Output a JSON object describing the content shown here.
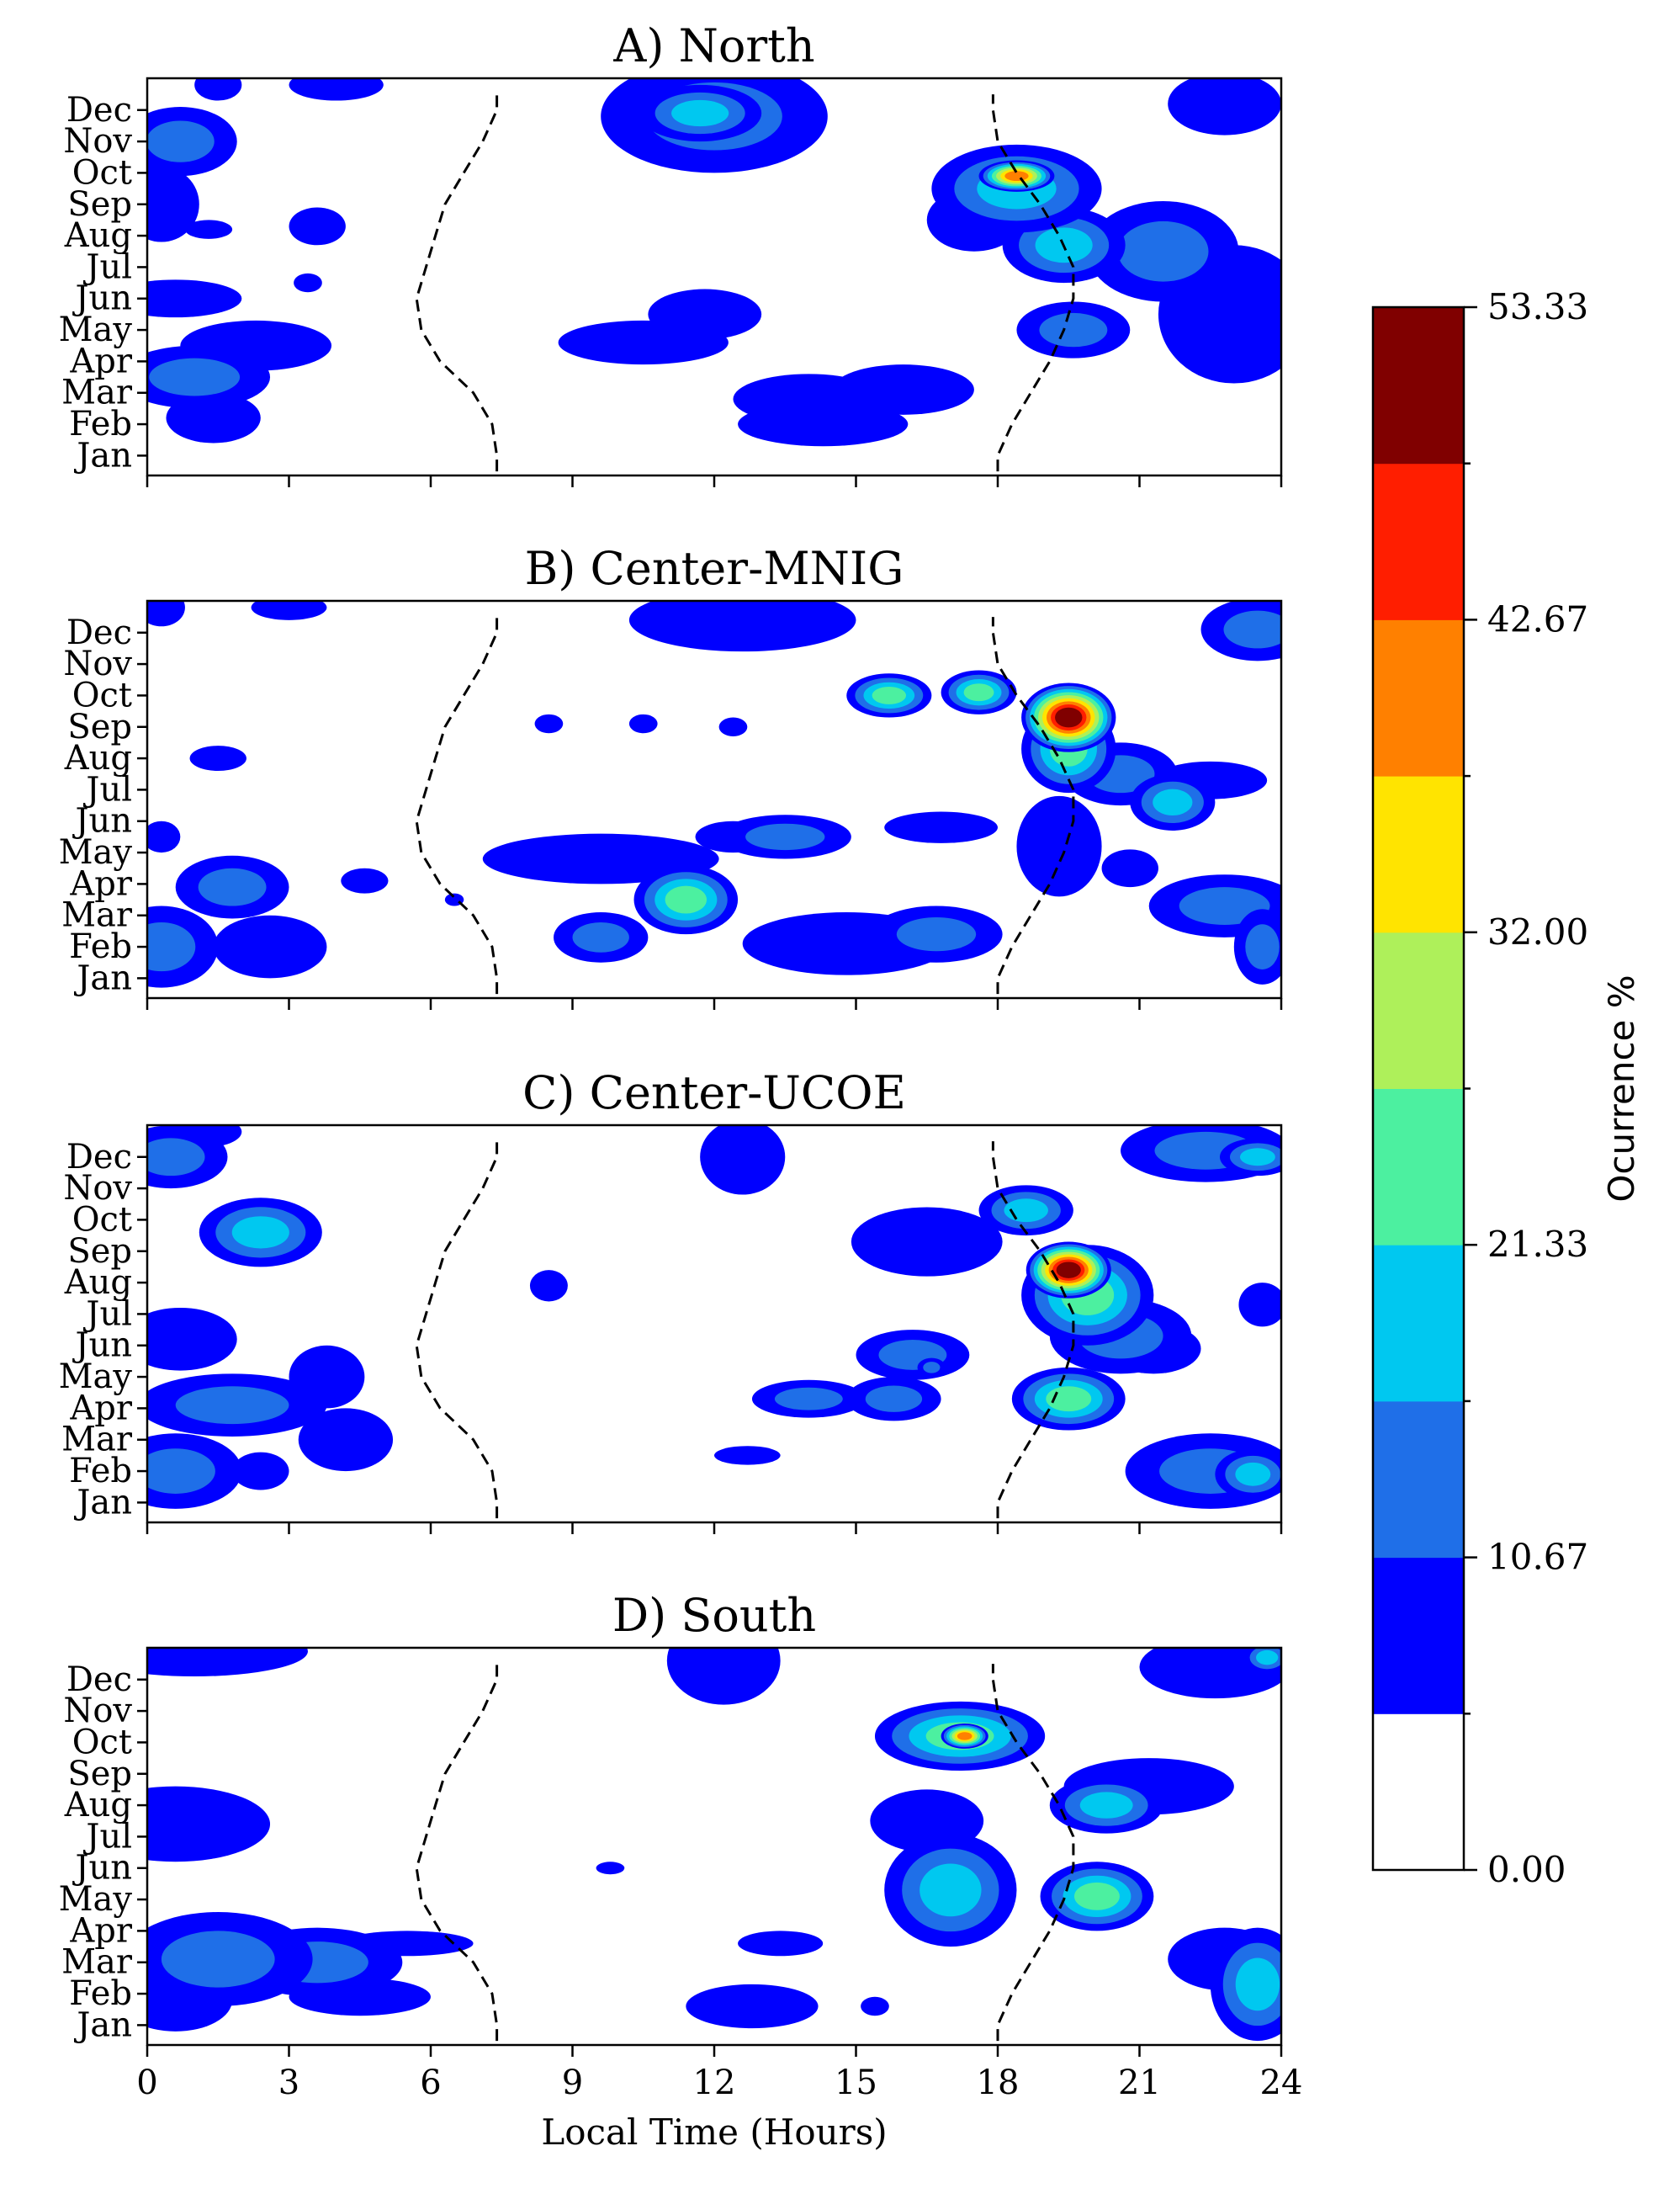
{
  "chart_data": {
    "type": "heatmap",
    "xlabel": "Local Time (Hours)",
    "x_ticks": [
      0,
      3,
      6,
      9,
      12,
      15,
      18,
      21,
      24
    ],
    "xlim": [
      0,
      24
    ],
    "y_months": [
      "Jan",
      "Feb",
      "Mar",
      "Apr",
      "May",
      "Jun",
      "Jul",
      "Aug",
      "Sep",
      "Oct",
      "Nov",
      "Dec"
    ],
    "colorbar": {
      "label": "Ocurrence %",
      "ticks": [
        "53.33",
        "42.67",
        "32.00",
        "21.33",
        "10.67",
        "0.00"
      ],
      "range": [
        0,
        53.33
      ],
      "levels": 10,
      "colors": [
        "#ffffff",
        "#0000ff",
        "#1f6fe8",
        "#00c8f0",
        "#4cf0a0",
        "#aef05a",
        "#ffe400",
        "#ff8000",
        "#ff1e00",
        "#800000"
      ]
    },
    "terminator": {
      "sunrise_hours": [
        7.4,
        7.3,
        6.9,
        6.2,
        5.8,
        5.7,
        5.9,
        6.1,
        6.3,
        6.7,
        7.1,
        7.4
      ],
      "sunset_hours": [
        18.0,
        18.3,
        18.7,
        19.1,
        19.4,
        19.6,
        19.6,
        19.3,
        18.9,
        18.4,
        18.0,
        17.9
      ]
    },
    "panels": [
      {
        "title": "A) North",
        "blobs": [
          {
            "x": 0.7,
            "y": 10.0,
            "rx": 1.2,
            "ry": 1.1,
            "v": 13
          },
          {
            "x": 0.3,
            "y": 8.0,
            "rx": 0.8,
            "ry": 1.2,
            "v": 9
          },
          {
            "x": 1.0,
            "y": 2.5,
            "rx": 1.6,
            "ry": 1.0,
            "v": 11
          },
          {
            "x": 1.4,
            "y": 1.2,
            "rx": 1.0,
            "ry": 0.8,
            "v": 10
          },
          {
            "x": 2.3,
            "y": 3.5,
            "rx": 1.6,
            "ry": 0.8,
            "v": 8
          },
          {
            "x": 0.6,
            "y": 5.0,
            "rx": 1.4,
            "ry": 0.6,
            "v": 8
          },
          {
            "x": 1.3,
            "y": 7.2,
            "rx": 0.5,
            "ry": 0.3,
            "v": 7
          },
          {
            "x": 3.6,
            "y": 7.3,
            "rx": 0.6,
            "ry": 0.6,
            "v": 8
          },
          {
            "x": 3.4,
            "y": 5.5,
            "rx": 0.3,
            "ry": 0.3,
            "v": 7
          },
          {
            "x": 1.5,
            "y": 11.8,
            "rx": 0.5,
            "ry": 0.5,
            "v": 7
          },
          {
            "x": 4.0,
            "y": 11.8,
            "rx": 1.0,
            "ry": 0.5,
            "v": 8
          },
          {
            "x": 12.0,
            "y": 10.8,
            "rx": 2.4,
            "ry": 1.8,
            "v": 13
          },
          {
            "x": 11.7,
            "y": 10.9,
            "rx": 1.3,
            "ry": 0.9,
            "v": 18
          },
          {
            "x": 11.8,
            "y": 4.5,
            "rx": 1.2,
            "ry": 0.8,
            "v": 8
          },
          {
            "x": 10.5,
            "y": 3.6,
            "rx": 1.8,
            "ry": 0.7,
            "v": 8
          },
          {
            "x": 14.0,
            "y": 1.8,
            "rx": 1.6,
            "ry": 0.8,
            "v": 9
          },
          {
            "x": 16.0,
            "y": 2.1,
            "rx": 1.5,
            "ry": 0.8,
            "v": 10
          },
          {
            "x": 14.3,
            "y": 1.0,
            "rx": 1.8,
            "ry": 0.7,
            "v": 8
          },
          {
            "x": 18.4,
            "y": 8.5,
            "rx": 1.8,
            "ry": 1.4,
            "v": 20
          },
          {
            "x": 18.4,
            "y": 8.9,
            "rx": 0.8,
            "ry": 0.5,
            "v": 42
          },
          {
            "x": 19.4,
            "y": 6.7,
            "rx": 1.3,
            "ry": 1.2,
            "v": 16
          },
          {
            "x": 19.6,
            "y": 4.0,
            "rx": 1.2,
            "ry": 0.9,
            "v": 14
          },
          {
            "x": 21.5,
            "y": 6.5,
            "rx": 1.6,
            "ry": 1.6,
            "v": 11
          },
          {
            "x": 23.0,
            "y": 4.5,
            "rx": 1.6,
            "ry": 2.2,
            "v": 9
          },
          {
            "x": 22.8,
            "y": 11.2,
            "rx": 1.2,
            "ry": 1.0,
            "v": 8
          },
          {
            "x": 17.5,
            "y": 7.5,
            "rx": 1.0,
            "ry": 1.0,
            "v": 10
          }
        ]
      },
      {
        "title": "B) Center-MNIG",
        "blobs": [
          {
            "x": 0.3,
            "y": 1.0,
            "rx": 1.2,
            "ry": 1.3,
            "v": 12
          },
          {
            "x": 1.8,
            "y": 2.9,
            "rx": 1.2,
            "ry": 1.0,
            "v": 14
          },
          {
            "x": 2.6,
            "y": 1.0,
            "rx": 1.2,
            "ry": 1.0,
            "v": 10
          },
          {
            "x": 0.3,
            "y": 4.5,
            "rx": 0.4,
            "ry": 0.5,
            "v": 7
          },
          {
            "x": 1.5,
            "y": 7.0,
            "rx": 0.6,
            "ry": 0.4,
            "v": 7
          },
          {
            "x": 0.3,
            "y": 11.8,
            "rx": 0.5,
            "ry": 0.6,
            "v": 7
          },
          {
            "x": 3.0,
            "y": 11.8,
            "rx": 0.8,
            "ry": 0.4,
            "v": 7
          },
          {
            "x": 4.6,
            "y": 3.1,
            "rx": 0.5,
            "ry": 0.4,
            "v": 7
          },
          {
            "x": 6.5,
            "y": 2.5,
            "rx": 0.2,
            "ry": 0.2,
            "v": 6
          },
          {
            "x": 8.5,
            "y": 8.1,
            "rx": 0.3,
            "ry": 0.3,
            "v": 7
          },
          {
            "x": 10.5,
            "y": 8.1,
            "rx": 0.3,
            "ry": 0.3,
            "v": 7
          },
          {
            "x": 12.4,
            "y": 8.0,
            "rx": 0.3,
            "ry": 0.3,
            "v": 7
          },
          {
            "x": 9.6,
            "y": 3.8,
            "rx": 2.5,
            "ry": 0.8,
            "v": 10
          },
          {
            "x": 11.4,
            "y": 2.5,
            "rx": 1.1,
            "ry": 1.1,
            "v": 26
          },
          {
            "x": 9.6,
            "y": 1.3,
            "rx": 1.0,
            "ry": 0.8,
            "v": 12
          },
          {
            "x": 12.4,
            "y": 4.5,
            "rx": 0.8,
            "ry": 0.5,
            "v": 8
          },
          {
            "x": 13.5,
            "y": 4.5,
            "rx": 1.4,
            "ry": 0.7,
            "v": 14
          },
          {
            "x": 16.8,
            "y": 4.8,
            "rx": 1.2,
            "ry": 0.5,
            "v": 9
          },
          {
            "x": 14.8,
            "y": 1.1,
            "rx": 2.2,
            "ry": 1.0,
            "v": 10
          },
          {
            "x": 16.7,
            "y": 1.4,
            "rx": 1.4,
            "ry": 0.9,
            "v": 13
          },
          {
            "x": 12.6,
            "y": 11.4,
            "rx": 2.4,
            "ry": 1.0,
            "v": 10
          },
          {
            "x": 15.7,
            "y": 9.0,
            "rx": 0.9,
            "ry": 0.7,
            "v": 22
          },
          {
            "x": 17.6,
            "y": 9.1,
            "rx": 0.8,
            "ry": 0.7,
            "v": 22
          },
          {
            "x": 19.5,
            "y": 8.3,
            "rx": 1.0,
            "ry": 1.1,
            "v": 52
          },
          {
            "x": 19.5,
            "y": 7.3,
            "rx": 1.0,
            "ry": 1.4,
            "v": 24
          },
          {
            "x": 20.6,
            "y": 6.5,
            "rx": 1.2,
            "ry": 1.0,
            "v": 12
          },
          {
            "x": 21.7,
            "y": 5.6,
            "rx": 0.9,
            "ry": 0.9,
            "v": 16
          },
          {
            "x": 22.5,
            "y": 6.3,
            "rx": 1.2,
            "ry": 0.6,
            "v": 8
          },
          {
            "x": 19.3,
            "y": 4.2,
            "rx": 0.9,
            "ry": 1.6,
            "v": 10
          },
          {
            "x": 20.8,
            "y": 3.5,
            "rx": 0.6,
            "ry": 0.6,
            "v": 7
          },
          {
            "x": 22.8,
            "y": 2.3,
            "rx": 1.6,
            "ry": 1.0,
            "v": 12
          },
          {
            "x": 23.6,
            "y": 1.0,
            "rx": 0.6,
            "ry": 1.2,
            "v": 12
          },
          {
            "x": 23.5,
            "y": 11.1,
            "rx": 1.2,
            "ry": 1.0,
            "v": 14
          }
        ]
      },
      {
        "title": "C) Center-UCOE",
        "blobs": [
          {
            "x": 0.5,
            "y": 11.0,
            "rx": 1.2,
            "ry": 1.0,
            "v": 14
          },
          {
            "x": 1.2,
            "y": 11.8,
            "rx": 0.8,
            "ry": 0.5,
            "v": 8
          },
          {
            "x": 2.4,
            "y": 8.6,
            "rx": 1.3,
            "ry": 1.1,
            "v": 16
          },
          {
            "x": 0.7,
            "y": 5.2,
            "rx": 1.2,
            "ry": 1.0,
            "v": 9
          },
          {
            "x": 1.8,
            "y": 3.1,
            "rx": 2.0,
            "ry": 1.0,
            "v": 14
          },
          {
            "x": 3.8,
            "y": 4.0,
            "rx": 0.8,
            "ry": 1.0,
            "v": 9
          },
          {
            "x": 4.2,
            "y": 2.0,
            "rx": 1.0,
            "ry": 1.0,
            "v": 8
          },
          {
            "x": 0.6,
            "y": 1.0,
            "rx": 1.4,
            "ry": 1.2,
            "v": 12
          },
          {
            "x": 2.4,
            "y": 1.0,
            "rx": 0.6,
            "ry": 0.6,
            "v": 10
          },
          {
            "x": 8.5,
            "y": 6.9,
            "rx": 0.4,
            "ry": 0.5,
            "v": 7
          },
          {
            "x": 12.6,
            "y": 11.0,
            "rx": 0.9,
            "ry": 1.2,
            "v": 8
          },
          {
            "x": 12.7,
            "y": 1.5,
            "rx": 0.7,
            "ry": 0.3,
            "v": 7
          },
          {
            "x": 16.5,
            "y": 8.3,
            "rx": 1.6,
            "ry": 1.1,
            "v": 10
          },
          {
            "x": 18.6,
            "y": 9.3,
            "rx": 1.0,
            "ry": 0.8,
            "v": 16
          },
          {
            "x": 14.0,
            "y": 3.3,
            "rx": 1.2,
            "ry": 0.6,
            "v": 12
          },
          {
            "x": 15.8,
            "y": 3.3,
            "rx": 1.0,
            "ry": 0.7,
            "v": 14
          },
          {
            "x": 16.2,
            "y": 4.7,
            "rx": 1.2,
            "ry": 0.8,
            "v": 11
          },
          {
            "x": 16.6,
            "y": 4.3,
            "rx": 0.3,
            "ry": 0.3,
            "v": 15
          },
          {
            "x": 19.5,
            "y": 7.4,
            "rx": 0.9,
            "ry": 0.9,
            "v": 50
          },
          {
            "x": 19.9,
            "y": 6.6,
            "rx": 1.4,
            "ry": 1.6,
            "v": 26
          },
          {
            "x": 20.6,
            "y": 5.3,
            "rx": 1.5,
            "ry": 1.2,
            "v": 12
          },
          {
            "x": 21.3,
            "y": 4.9,
            "rx": 1.0,
            "ry": 0.8,
            "v": 9
          },
          {
            "x": 19.5,
            "y": 3.3,
            "rx": 1.2,
            "ry": 1.0,
            "v": 26
          },
          {
            "x": 22.4,
            "y": 11.2,
            "rx": 1.8,
            "ry": 1.0,
            "v": 12
          },
          {
            "x": 23.5,
            "y": 11.0,
            "rx": 0.8,
            "ry": 0.6,
            "v": 20
          },
          {
            "x": 23.6,
            "y": 6.3,
            "rx": 0.5,
            "ry": 0.7,
            "v": 8
          },
          {
            "x": 22.5,
            "y": 1.0,
            "rx": 1.8,
            "ry": 1.2,
            "v": 14
          },
          {
            "x": 23.4,
            "y": 0.9,
            "rx": 0.8,
            "ry": 0.8,
            "v": 20
          }
        ]
      },
      {
        "title": "D) South",
        "blobs": [
          {
            "x": 1.0,
            "y": 11.9,
            "rx": 2.4,
            "ry": 0.8,
            "v": 9
          },
          {
            "x": 12.2,
            "y": 11.6,
            "rx": 1.2,
            "ry": 1.4,
            "v": 9
          },
          {
            "x": 0.6,
            "y": 6.4,
            "rx": 2.0,
            "ry": 1.2,
            "v": 8
          },
          {
            "x": 1.5,
            "y": 2.1,
            "rx": 2.0,
            "ry": 1.5,
            "v": 12
          },
          {
            "x": 3.6,
            "y": 2.0,
            "rx": 1.8,
            "ry": 1.1,
            "v": 11
          },
          {
            "x": 5.5,
            "y": 2.6,
            "rx": 1.4,
            "ry": 0.4,
            "v": 8
          },
          {
            "x": 0.6,
            "y": 0.8,
            "rx": 1.2,
            "ry": 1.0,
            "v": 10
          },
          {
            "x": 4.5,
            "y": 0.9,
            "rx": 1.5,
            "ry": 0.6,
            "v": 9
          },
          {
            "x": 9.8,
            "y": 5.0,
            "rx": 0.3,
            "ry": 0.2,
            "v": 7
          },
          {
            "x": 12.8,
            "y": 0.6,
            "rx": 1.4,
            "ry": 0.7,
            "v": 8
          },
          {
            "x": 15.4,
            "y": 0.6,
            "rx": 0.3,
            "ry": 0.3,
            "v": 7
          },
          {
            "x": 13.4,
            "y": 2.6,
            "rx": 0.9,
            "ry": 0.4,
            "v": 7
          },
          {
            "x": 17.2,
            "y": 9.2,
            "rx": 1.8,
            "ry": 1.1,
            "v": 24
          },
          {
            "x": 17.3,
            "y": 9.2,
            "rx": 0.5,
            "ry": 0.4,
            "v": 42
          },
          {
            "x": 17.0,
            "y": 4.3,
            "rx": 1.4,
            "ry": 1.8,
            "v": 20
          },
          {
            "x": 16.5,
            "y": 6.5,
            "rx": 1.2,
            "ry": 1.0,
            "v": 9
          },
          {
            "x": 20.3,
            "y": 7.0,
            "rx": 1.2,
            "ry": 0.9,
            "v": 18
          },
          {
            "x": 21.2,
            "y": 7.6,
            "rx": 1.8,
            "ry": 0.9,
            "v": 10
          },
          {
            "x": 20.1,
            "y": 4.1,
            "rx": 1.2,
            "ry": 1.1,
            "v": 22
          },
          {
            "x": 22.6,
            "y": 11.4,
            "rx": 1.6,
            "ry": 1.0,
            "v": 10
          },
          {
            "x": 23.7,
            "y": 11.7,
            "rx": 0.5,
            "ry": 0.5,
            "v": 18
          },
          {
            "x": 23.5,
            "y": 1.3,
            "rx": 1.0,
            "ry": 1.8,
            "v": 18
          },
          {
            "x": 22.8,
            "y": 2.1,
            "rx": 1.2,
            "ry": 1.0,
            "v": 9
          }
        ]
      }
    ]
  }
}
